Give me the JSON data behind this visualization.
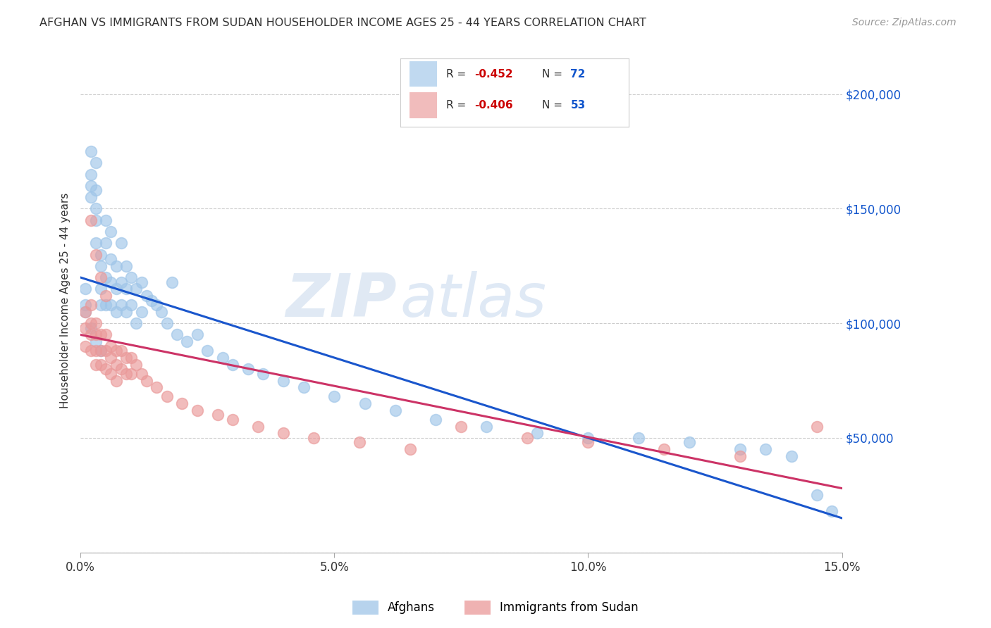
{
  "title": "AFGHAN VS IMMIGRANTS FROM SUDAN HOUSEHOLDER INCOME AGES 25 - 44 YEARS CORRELATION CHART",
  "source": "Source: ZipAtlas.com",
  "ylabel": "Householder Income Ages 25 - 44 years",
  "xlim": [
    0.0,
    0.15
  ],
  "ylim": [
    0,
    220000
  ],
  "yticks": [
    0,
    50000,
    100000,
    150000,
    200000
  ],
  "ytick_labels": [
    "",
    "$50,000",
    "$100,000",
    "$150,000",
    "$200,000"
  ],
  "xticks": [
    0.0,
    0.05,
    0.1,
    0.15
  ],
  "xtick_labels": [
    "0.0%",
    "5.0%",
    "10.0%",
    "15.0%"
  ],
  "background_color": "#ffffff",
  "grid_color": "#cccccc",
  "watermark_zip": "ZIP",
  "watermark_atlas": "atlas",
  "r1": "-0.452",
  "n1": "72",
  "r2": "-0.406",
  "n2": "53",
  "blue_scatter_color": "#9fc5e8",
  "pink_scatter_color": "#ea9999",
  "blue_line_color": "#1a56cc",
  "pink_line_color": "#cc3366",
  "r_color": "#cc0000",
  "n_color": "#1155cc",
  "legend_label1": "Afghans",
  "legend_label2": "Immigrants from Sudan",
  "afghan_x": [
    0.001,
    0.001,
    0.002,
    0.002,
    0.002,
    0.002,
    0.003,
    0.003,
    0.003,
    0.003,
    0.003,
    0.004,
    0.004,
    0.004,
    0.004,
    0.005,
    0.005,
    0.005,
    0.005,
    0.006,
    0.006,
    0.006,
    0.006,
    0.007,
    0.007,
    0.007,
    0.008,
    0.008,
    0.008,
    0.009,
    0.009,
    0.009,
    0.01,
    0.01,
    0.011,
    0.011,
    0.012,
    0.012,
    0.013,
    0.014,
    0.015,
    0.016,
    0.017,
    0.018,
    0.019,
    0.021,
    0.023,
    0.025,
    0.028,
    0.03,
    0.033,
    0.036,
    0.04,
    0.044,
    0.05,
    0.056,
    0.062,
    0.07,
    0.08,
    0.09,
    0.1,
    0.11,
    0.12,
    0.13,
    0.135,
    0.14,
    0.145,
    0.148,
    0.001,
    0.002,
    0.003,
    0.004
  ],
  "afghan_y": [
    115000,
    108000,
    175000,
    165000,
    160000,
    155000,
    170000,
    158000,
    150000,
    145000,
    135000,
    130000,
    125000,
    115000,
    108000,
    145000,
    135000,
    120000,
    108000,
    140000,
    128000,
    118000,
    108000,
    125000,
    115000,
    105000,
    135000,
    118000,
    108000,
    125000,
    115000,
    105000,
    120000,
    108000,
    115000,
    100000,
    118000,
    105000,
    112000,
    110000,
    108000,
    105000,
    100000,
    118000,
    95000,
    92000,
    95000,
    88000,
    85000,
    82000,
    80000,
    78000,
    75000,
    72000,
    68000,
    65000,
    62000,
    58000,
    55000,
    52000,
    50000,
    50000,
    48000,
    45000,
    45000,
    42000,
    25000,
    18000,
    105000,
    98000,
    92000,
    88000
  ],
  "sudan_x": [
    0.001,
    0.001,
    0.001,
    0.002,
    0.002,
    0.002,
    0.002,
    0.003,
    0.003,
    0.003,
    0.003,
    0.004,
    0.004,
    0.004,
    0.005,
    0.005,
    0.005,
    0.006,
    0.006,
    0.006,
    0.007,
    0.007,
    0.007,
    0.008,
    0.008,
    0.009,
    0.009,
    0.01,
    0.01,
    0.011,
    0.012,
    0.013,
    0.015,
    0.017,
    0.02,
    0.023,
    0.027,
    0.03,
    0.035,
    0.04,
    0.046,
    0.055,
    0.065,
    0.075,
    0.088,
    0.1,
    0.115,
    0.13,
    0.145,
    0.002,
    0.003,
    0.004,
    0.005
  ],
  "sudan_y": [
    105000,
    98000,
    90000,
    108000,
    100000,
    95000,
    88000,
    100000,
    95000,
    88000,
    82000,
    95000,
    88000,
    82000,
    95000,
    88000,
    80000,
    90000,
    85000,
    78000,
    88000,
    82000,
    75000,
    88000,
    80000,
    85000,
    78000,
    85000,
    78000,
    82000,
    78000,
    75000,
    72000,
    68000,
    65000,
    62000,
    60000,
    58000,
    55000,
    52000,
    50000,
    48000,
    45000,
    55000,
    50000,
    48000,
    45000,
    42000,
    55000,
    145000,
    130000,
    120000,
    112000
  ]
}
